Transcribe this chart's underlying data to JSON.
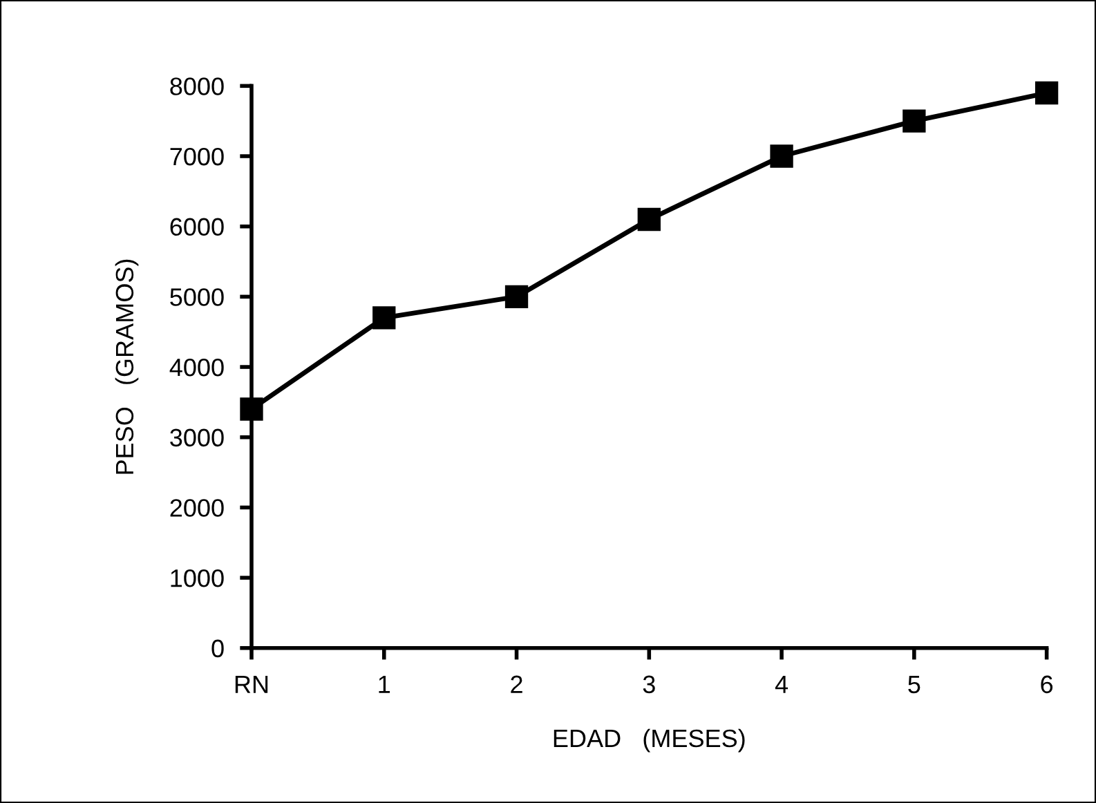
{
  "chart_data": {
    "type": "line",
    "xlabel": "EDAD   (MESES)",
    "ylabel": "PESO   (GRAMOS)",
    "categories": [
      "RN",
      "1",
      "2",
      "3",
      "4",
      "5",
      "6"
    ],
    "series": [
      {
        "color": "#000000",
        "values": [
          3400,
          4700,
          5000,
          6100,
          7000,
          7500,
          7900
        ]
      }
    ],
    "ylim": [
      0,
      8000
    ],
    "yticks": [
      0,
      1000,
      2000,
      3000,
      4000,
      5000,
      6000,
      7000,
      8000
    ],
    "grid": false,
    "legend": false,
    "marker": "square",
    "line_style": "solid"
  }
}
